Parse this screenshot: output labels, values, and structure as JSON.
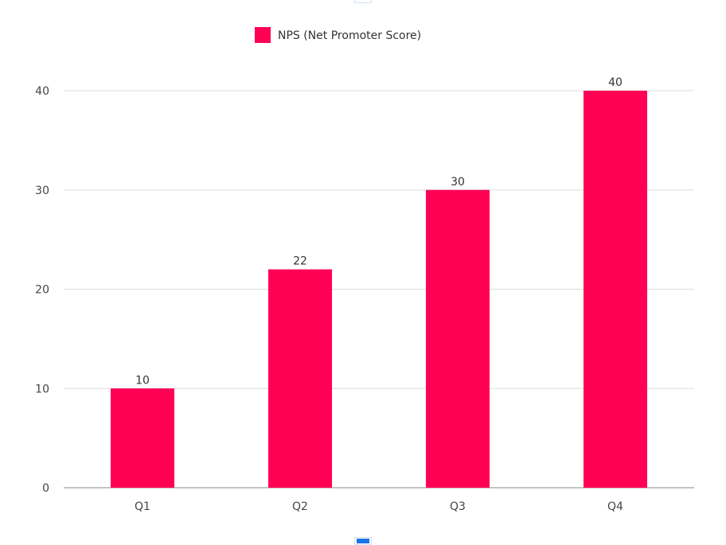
{
  "chart_data": {
    "type": "bar",
    "title": "",
    "categories": [
      "Q1",
      "Q2",
      "Q3",
      "Q4"
    ],
    "series": [
      {
        "name": "NPS (Net Promoter Score)",
        "values": [
          10,
          22,
          30,
          40
        ],
        "color": "#ff0055"
      }
    ],
    "xlabel": "",
    "ylabel": "",
    "ylim": [
      0,
      40
    ],
    "yticks": [
      0,
      10,
      20,
      30,
      40
    ],
    "grid": true,
    "legend": "top-center"
  }
}
